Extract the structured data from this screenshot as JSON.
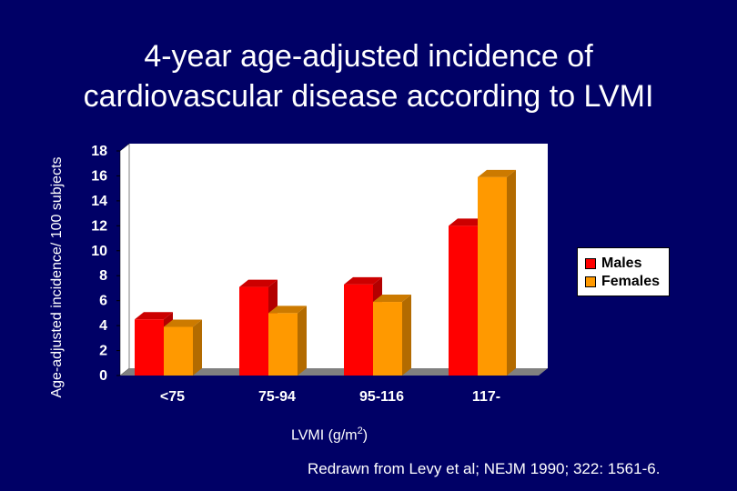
{
  "chart_data": {
    "type": "bar",
    "title": "4-year age-adjusted incidence of cardiovascular disease according to LVMI",
    "ylabel": "Age-adjusted incidence/ 100 subjects",
    "xlabel": "LVMI (g/m2)",
    "categories": [
      "<75",
      "75-94",
      "95-116",
      "117-"
    ],
    "series": [
      {
        "name": "Males",
        "values": [
          4.5,
          7.1,
          7.3,
          12.0
        ]
      },
      {
        "name": "Females",
        "values": [
          3.9,
          5.0,
          5.9,
          15.9
        ]
      }
    ],
    "ylim": [
      0,
      18
    ],
    "yticks": [
      "0",
      "2",
      "4",
      "6",
      "8",
      "10",
      "12",
      "14",
      "16",
      "18"
    ],
    "legend_position": "right",
    "colors": {
      "Males": "#ff0000",
      "Females": "#ff9900",
      "plot_background": "#ffffff",
      "floor": "#808080"
    }
  },
  "title_line1": "4-year age-adjusted incidence of",
  "title_line2": "cardiovascular disease according to LVMI",
  "ylabel": "Age-adjusted incidence/ 100 subjects",
  "xlabel_main": "LVMI (g/m",
  "xlabel_sup": "2",
  "xlabel_end": ")",
  "source": "Redrawn from Levy et al; NEJM 1990; 322: 1561-6.",
  "legend": {
    "males": "Males",
    "females": "Females"
  }
}
